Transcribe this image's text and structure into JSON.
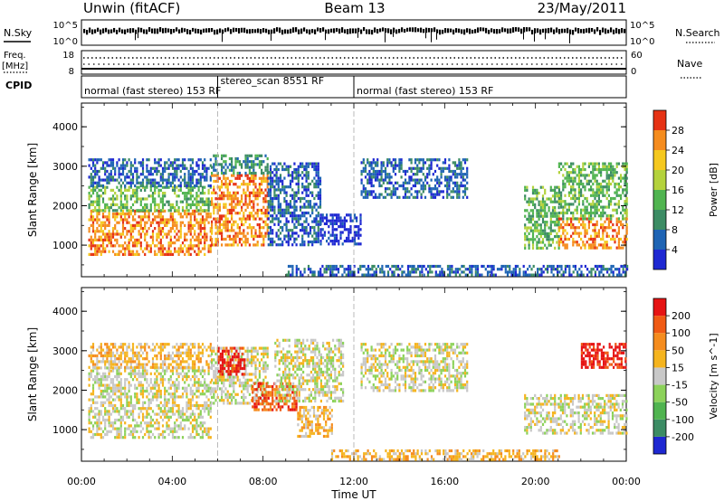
{
  "header": {
    "station": "Unwin (fitACF)",
    "beam": "Beam 13",
    "date": "23/May/2011"
  },
  "panels": {
    "nsky": {
      "left_label": "N.Sky",
      "tick_top": "10^5",
      "tick_bottom": "10^0",
      "right_label": "N.Search"
    },
    "freq": {
      "left_label_top": "Freq.",
      "left_label_unit": "[MHz]",
      "tick_top": "18",
      "tick_bottom": "8",
      "right_tick_top": "60",
      "right_tick_bottom": "0",
      "right_label": "Nave"
    },
    "cpid": {
      "label": "CPID",
      "segments": [
        {
          "label": "normal (fast stereo) 153 RF",
          "start_hour": 0,
          "end_hour": 6
        },
        {
          "label": "stereo_scan 8551 RF",
          "start_hour": 6,
          "end_hour": 12
        },
        {
          "label": "normal (fast stereo) 153 RF",
          "start_hour": 12,
          "end_hour": 24
        }
      ]
    }
  },
  "chart_data": [
    {
      "type": "heatmap",
      "name": "Power",
      "ylabel": "Slant Range [km]",
      "ylim": [
        200,
        4600
      ],
      "yticks": [
        "1000",
        "2000",
        "3000",
        "4000"
      ],
      "xlim": [
        0,
        24
      ],
      "colorbar": {
        "label": "Power [dB]",
        "ticks": [
          "4",
          "8",
          "12",
          "16",
          "20",
          "24",
          "28"
        ],
        "colors": [
          "#1e28d2",
          "#1e64b4",
          "#3c8c64",
          "#50b450",
          "#b4d23c",
          "#f5c81e",
          "#f58c1e",
          "#e63214"
        ]
      },
      "bands": [
        {
          "start": 0.3,
          "end": 5.7,
          "r0": 800,
          "r1": 1900,
          "level": 6
        },
        {
          "start": 0.3,
          "end": 5.7,
          "r0": 1900,
          "r1": 2500,
          "level": 3
        },
        {
          "start": 0.3,
          "end": 5.7,
          "r0": 2500,
          "r1": 3200,
          "level": 1
        },
        {
          "start": 5.7,
          "end": 8.2,
          "r0": 1000,
          "r1": 2800,
          "level": 6
        },
        {
          "start": 5.7,
          "end": 8.2,
          "r0": 2800,
          "r1": 3300,
          "level": 2
        },
        {
          "start": 8.2,
          "end": 10.5,
          "r0": 1000,
          "r1": 3100,
          "level": 1
        },
        {
          "start": 10.5,
          "end": 12.3,
          "r0": 1000,
          "r1": 1800,
          "level": 0
        },
        {
          "start": 12.3,
          "end": 17.0,
          "r0": 2200,
          "r1": 3200,
          "level": 1
        },
        {
          "start": 19.5,
          "end": 21.0,
          "r0": 900,
          "r1": 2500,
          "level": 3
        },
        {
          "start": 21.0,
          "end": 24.0,
          "r0": 900,
          "r1": 1700,
          "level": 6
        },
        {
          "start": 21.0,
          "end": 24.0,
          "r0": 1700,
          "r1": 3100,
          "level": 3
        },
        {
          "start": 9.0,
          "end": 24.0,
          "r0": 250,
          "r1": 500,
          "level": 1
        }
      ]
    },
    {
      "type": "heatmap",
      "name": "Velocity",
      "ylabel": "Slant Range [km]",
      "ylim": [
        200,
        4600
      ],
      "yticks": [
        "1000",
        "2000",
        "3000",
        "4000"
      ],
      "xlim": [
        0,
        24
      ],
      "colorbar": {
        "label": "Velocity [m s^-1]",
        "ticks": [
          "200",
          "100",
          "50",
          "15",
          "-15",
          "-50",
          "-100",
          "-200"
        ],
        "colors": [
          "#1e28d2",
          "#3c8c64",
          "#50b450",
          "#8cd25a",
          "#c8c8c8",
          "#f5b41e",
          "#f58c1e",
          "#f05a14",
          "#e61414"
        ]
      },
      "bands": [
        {
          "start": 0.3,
          "end": 5.7,
          "r0": 800,
          "r1": 2600,
          "level": 4
        },
        {
          "start": 0.3,
          "end": 5.7,
          "r0": 2600,
          "r1": 3200,
          "level": 5
        },
        {
          "start": 5.7,
          "end": 8.2,
          "r0": 1700,
          "r1": 3100,
          "level": 4
        },
        {
          "start": 6.0,
          "end": 7.2,
          "r0": 2400,
          "r1": 3100,
          "level": 8
        },
        {
          "start": 7.5,
          "end": 9.5,
          "r0": 1500,
          "r1": 2200,
          "level": 7
        },
        {
          "start": 8.5,
          "end": 11.5,
          "r0": 1700,
          "r1": 3300,
          "level": 4
        },
        {
          "start": 9.5,
          "end": 11.0,
          "r0": 800,
          "r1": 1600,
          "level": 5
        },
        {
          "start": 12.3,
          "end": 17.0,
          "r0": 2000,
          "r1": 3200,
          "level": 4
        },
        {
          "start": 19.5,
          "end": 24.0,
          "r0": 900,
          "r1": 1900,
          "level": 4
        },
        {
          "start": 22.0,
          "end": 24.0,
          "r0": 2600,
          "r1": 3200,
          "level": 8
        },
        {
          "start": 11.0,
          "end": 21.0,
          "r0": 250,
          "r1": 500,
          "level": 5
        }
      ]
    }
  ],
  "x_axis": {
    "ticks": [
      "00:00",
      "04:00",
      "08:00",
      "12:00",
      "16:00",
      "20:00",
      "00:00"
    ],
    "label": "Time UT"
  }
}
